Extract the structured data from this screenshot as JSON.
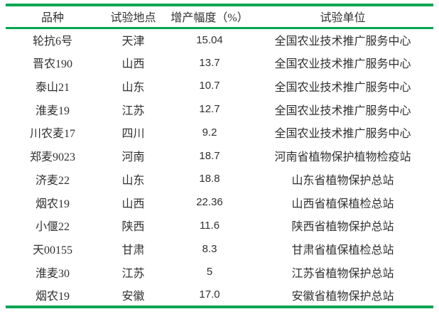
{
  "colors": {
    "rule_green": "#00a651",
    "text": "#303030",
    "background": "#ffffff"
  },
  "table": {
    "columns": [
      {
        "key": "variety",
        "label": "品种"
      },
      {
        "key": "location",
        "label": "试验地点"
      },
      {
        "key": "yield",
        "label": "增产幅度（%）"
      },
      {
        "key": "unit",
        "label": "试验单位"
      }
    ],
    "rows": [
      {
        "variety": "轮抗6号",
        "location": "天津",
        "yield": "15.04",
        "unit": "全国农业技术推广服务中心"
      },
      {
        "variety": "晋农190",
        "location": "山西",
        "yield": "13.7",
        "unit": "全国农业技术推广服务中心"
      },
      {
        "variety": "泰山21",
        "location": "山东",
        "yield": "10.7",
        "unit": "全国农业技术推广服务中心"
      },
      {
        "variety": "淮麦19",
        "location": "江苏",
        "yield": "12.7",
        "unit": "全国农业技术推广服务中心"
      },
      {
        "variety": "川农麦17",
        "location": "四川",
        "yield": "9.2",
        "unit": "全国农业技术推广服务中心"
      },
      {
        "variety": "郑麦9023",
        "location": "河南",
        "yield": "18.7",
        "unit": "河南省植物保护植物检疫站"
      },
      {
        "variety": "济麦22",
        "location": "山东",
        "yield": "18.8",
        "unit": "山东省植物保护总站"
      },
      {
        "variety": "烟农19",
        "location": "山西",
        "yield": "22.36",
        "unit": "山西省植保植检总站"
      },
      {
        "variety": "小偃22",
        "location": "陕西",
        "yield": "11.6",
        "unit": "陕西省植物保护总站"
      },
      {
        "variety": "天00155",
        "location": "甘肃",
        "yield": "8.3",
        "unit": "甘肃省植保植检总站"
      },
      {
        "variety": "淮麦30",
        "location": "江苏",
        "yield": "5",
        "unit": "江苏省植物保护总站"
      },
      {
        "variety": "烟农19",
        "location": "安徽",
        "yield": "17.0",
        "unit": "安徽省植物保护总站"
      }
    ]
  }
}
